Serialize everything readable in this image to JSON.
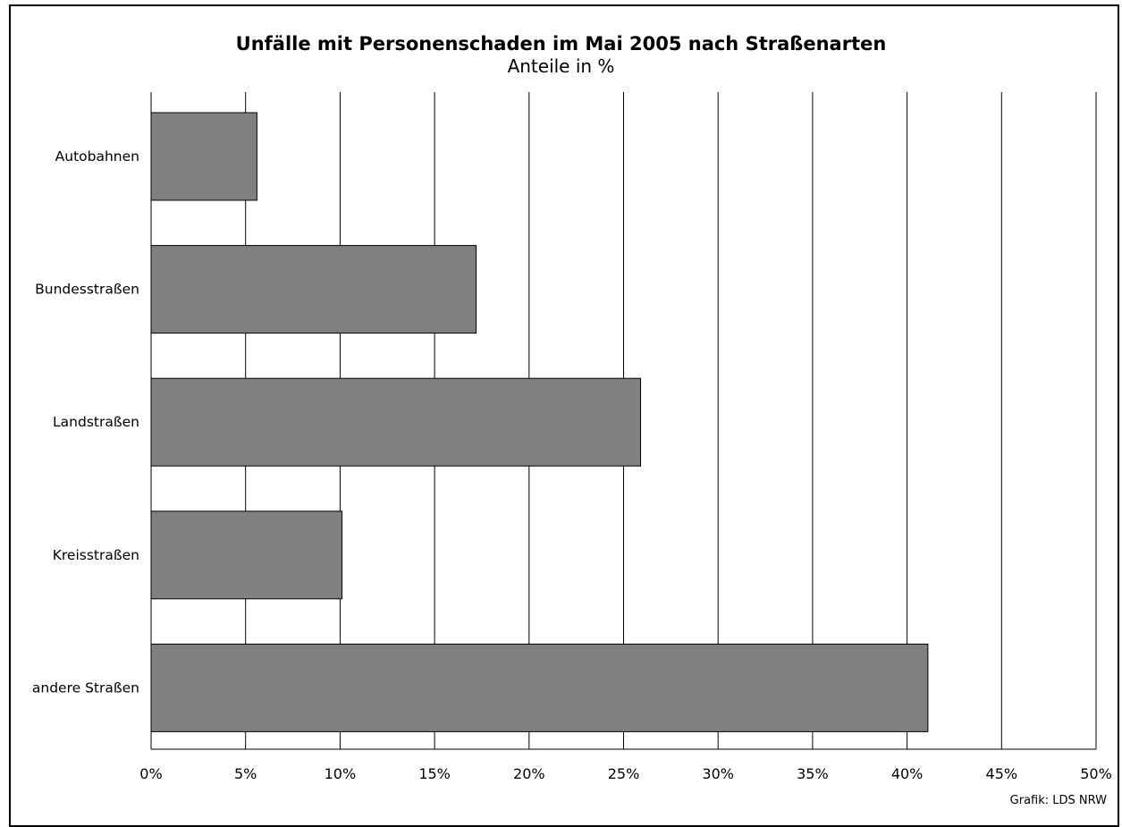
{
  "chart_data": {
    "type": "bar",
    "orientation": "horizontal",
    "title": "Unfälle mit Personenschaden im Mai 2005 nach Straßenarten",
    "subtitle": "Anteile in %",
    "categories": [
      "Autobahnen",
      "Bundesstraßen",
      "Landstraßen",
      "Kreisstraßen",
      "andere Straßen"
    ],
    "values": [
      5.6,
      17.2,
      25.9,
      10.1,
      41.1
    ],
    "xlim": [
      0,
      50
    ],
    "x_ticks": [
      "0%",
      "5%",
      "10%",
      "15%",
      "20%",
      "25%",
      "30%",
      "35%",
      "40%",
      "45%",
      "50%"
    ],
    "grid": true,
    "bar_color": "#808080",
    "source": "Grafik: LDS NRW"
  }
}
